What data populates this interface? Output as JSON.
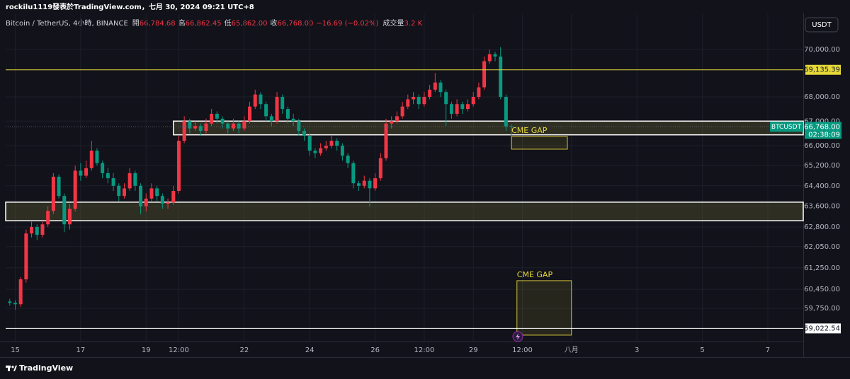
{
  "header": {
    "author_line": "rockilu1119發表於TradingView.com，七月 30, 2024 09:21 UTC+8",
    "symbol": "Bitcoin / TetherUS, 4小時, BINANCE",
    "ohlc": [
      {
        "label": "開",
        "value": "66,784.68"
      },
      {
        "label": "高",
        "value": "66,862.45"
      },
      {
        "label": "低",
        "value": "65,862.00"
      },
      {
        "label": "收",
        "value": "66,768.00"
      }
    ],
    "change": "−16.69 (−0.02%)",
    "volume_label": "成交量",
    "volume": "3.2 K"
  },
  "currency_button": "USDT",
  "chart_data": {
    "type": "candlestick",
    "log_scale": true,
    "grid": true,
    "up_color": "#f23645",
    "down_color": "#089981",
    "xlim": [
      -7,
      578
    ],
    "ylim": [
      58550,
      71530
    ],
    "xticks": [
      {
        "value": 0,
        "label": "15"
      },
      {
        "value": 48,
        "label": "17"
      },
      {
        "value": 96,
        "label": "19"
      },
      {
        "value": 120,
        "label": "12:00"
      },
      {
        "value": 168,
        "label": "22"
      },
      {
        "value": 216,
        "label": "24"
      },
      {
        "value": 264,
        "label": "26"
      },
      {
        "value": 300,
        "label": "12:00"
      },
      {
        "value": 336,
        "label": "29"
      },
      {
        "value": 372,
        "label": "12:00"
      },
      {
        "value": 408,
        "label": "八月"
      },
      {
        "value": 456,
        "label": "3"
      },
      {
        "value": 504,
        "label": "5"
      },
      {
        "value": 552,
        "label": "7"
      }
    ],
    "yticks": [
      {
        "value": 70000,
        "label": "70,000.00"
      },
      {
        "value": 68000,
        "label": "68,000.00"
      },
      {
        "value": 67000,
        "label": "67,000.00"
      },
      {
        "value": 66000,
        "label": "66,000.00"
      },
      {
        "value": 65200,
        "label": "65,200.00"
      },
      {
        "value": 64400,
        "label": "64,400.00"
      },
      {
        "value": 63600,
        "label": "63,600.00"
      },
      {
        "value": 62800,
        "label": "62,800.00"
      },
      {
        "value": 62050,
        "label": "62,050.00"
      },
      {
        "value": 61250,
        "label": "61,250.00"
      },
      {
        "value": 60450,
        "label": "60,450.00"
      },
      {
        "value": 59750,
        "label": "59,750.00"
      }
    ],
    "x": [
      -4,
      0,
      4,
      8,
      12,
      16,
      20,
      24,
      28,
      32,
      36,
      40,
      44,
      48,
      52,
      56,
      60,
      64,
      68,
      72,
      76,
      80,
      84,
      88,
      92,
      96,
      100,
      104,
      108,
      112,
      116,
      120,
      124,
      128,
      132,
      136,
      140,
      144,
      148,
      152,
      156,
      160,
      164,
      168,
      172,
      176,
      180,
      184,
      188,
      192,
      196,
      200,
      204,
      208,
      212,
      216,
      220,
      224,
      228,
      232,
      236,
      240,
      244,
      248,
      252,
      256,
      260,
      264,
      268,
      272,
      276,
      280,
      284,
      288,
      292,
      296,
      300,
      304,
      308,
      312,
      316,
      320,
      324,
      328,
      332,
      336,
      340,
      344,
      348,
      352,
      356,
      360,
      364
    ],
    "open": [
      60000,
      59950,
      59900,
      60820,
      62550,
      62800,
      62500,
      62900,
      63420,
      64760,
      64000,
      62900,
      63500,
      65000,
      64800,
      65100,
      65800,
      65300,
      64900,
      64700,
      64400,
      64000,
      64300,
      64900,
      64400,
      63600,
      63900,
      64300,
      64000,
      63700,
      63750,
      64200,
      66200,
      67000,
      66700,
      66800,
      66600,
      66900,
      67300,
      67100,
      66900,
      66700,
      66900,
      66700,
      67000,
      67600,
      68100,
      67700,
      67200,
      67000,
      68000,
      67500,
      67100,
      67000,
      66600,
      66400,
      65800,
      65700,
      65900,
      66000,
      66200,
      66000,
      65600,
      65300,
      64500,
      64400,
      64600,
      64300,
      64700,
      65500,
      66900,
      67000,
      67200,
      67600,
      67900,
      68000,
      67700,
      68000,
      68300,
      68600,
      68200,
      67700,
      67300,
      67700,
      67500,
      67700,
      68000,
      68400,
      69500,
      69800,
      69700,
      68000,
      66784.68
    ],
    "high": [
      60100,
      60050,
      60900,
      62700,
      63000,
      62900,
      63000,
      63600,
      64900,
      64850,
      64100,
      63700,
      65200,
      65300,
      65400,
      66200,
      65900,
      65400,
      65100,
      64900,
      64500,
      64500,
      65100,
      65000,
      64500,
      64100,
      64500,
      64400,
      64100,
      63900,
      64400,
      66400,
      67200,
      67100,
      67000,
      66900,
      67100,
      67500,
      67400,
      67200,
      67000,
      67100,
      67000,
      67200,
      67800,
      68300,
      68200,
      67800,
      67300,
      68200,
      68100,
      67600,
      67300,
      67100,
      66700,
      66500,
      65900,
      66100,
      66200,
      66400,
      66300,
      66100,
      65700,
      65400,
      64600,
      64800,
      64700,
      64900,
      65700,
      67100,
      67200,
      67400,
      67800,
      68100,
      68200,
      68100,
      68200,
      68500,
      69000,
      68700,
      68300,
      67800,
      67900,
      67800,
      67900,
      68200,
      68600,
      69700,
      70000,
      69900,
      70100,
      68100,
      66862.45
    ],
    "low": [
      59850,
      59700,
      59800,
      60700,
      62400,
      62300,
      62400,
      62800,
      63300,
      63900,
      62600,
      62700,
      63400,
      64600,
      64700,
      65000,
      65200,
      64700,
      64500,
      64200,
      63800,
      63900,
      64200,
      64200,
      63300,
      63400,
      63800,
      63800,
      63500,
      63500,
      63650,
      64100,
      66100,
      66500,
      66600,
      66400,
      66500,
      66800,
      66900,
      66700,
      66500,
      66600,
      66500,
      66600,
      66900,
      67500,
      67500,
      67000,
      66800,
      66900,
      67300,
      66900,
      66800,
      66400,
      66200,
      65600,
      65500,
      65600,
      65800,
      65900,
      65800,
      65400,
      65100,
      64300,
      64200,
      64300,
      63600,
      64200,
      64600,
      65400,
      66700,
      66900,
      67100,
      67500,
      67700,
      67500,
      67600,
      67900,
      68200,
      68000,
      66800,
      67100,
      67200,
      67300,
      67400,
      67600,
      67900,
      68300,
      69400,
      69500,
      67900,
      66600,
      65862
    ],
    "close": [
      59950,
      59900,
      60820,
      62550,
      62800,
      62500,
      62900,
      63420,
      64760,
      64000,
      62900,
      63500,
      65000,
      64800,
      65100,
      65800,
      65300,
      64900,
      64700,
      64400,
      64000,
      64300,
      64900,
      64400,
      63600,
      63900,
      64300,
      64000,
      63700,
      63750,
      64200,
      66200,
      67000,
      66700,
      66800,
      66600,
      66900,
      67300,
      67100,
      66900,
      66700,
      66900,
      66700,
      67000,
      67600,
      68100,
      67700,
      67200,
      67000,
      68000,
      67500,
      67100,
      67000,
      66600,
      66400,
      65800,
      65700,
      65900,
      66000,
      66200,
      66000,
      65600,
      65300,
      64500,
      64400,
      64600,
      64300,
      64700,
      65500,
      66900,
      67000,
      67200,
      67600,
      67900,
      68000,
      67700,
      68000,
      68300,
      68600,
      68200,
      67700,
      67300,
      67700,
      67500,
      67700,
      68000,
      68400,
      69500,
      69800,
      69700,
      68000,
      66784.68,
      66768
    ],
    "lines": [
      {
        "value": 69135.39,
        "label": "69,135.39",
        "color": "#e6d939"
      },
      {
        "value": 59022.54,
        "label": "59,022.54",
        "color": "#ffffff"
      }
    ],
    "zones": [
      {
        "x": [
          116,
          578
        ],
        "y": [
          66440,
          67000
        ]
      },
      {
        "x": [
          -7,
          578
        ],
        "y": [
          63040,
          63760
        ]
      }
    ],
    "gaps": [
      {
        "label": "CME GAP",
        "x": [
          364,
          405
        ],
        "y": [
          65860,
          66370
        ]
      },
      {
        "label": "CME GAP",
        "x": [
          368,
          408
        ],
        "y": [
          58780,
          60770
        ]
      }
    ],
    "last_price": {
      "symbol": "BTCUSDT",
      "value": 66768,
      "label": "66,768.00",
      "countdown": "02:38:09"
    }
  },
  "footer": "TradingView"
}
